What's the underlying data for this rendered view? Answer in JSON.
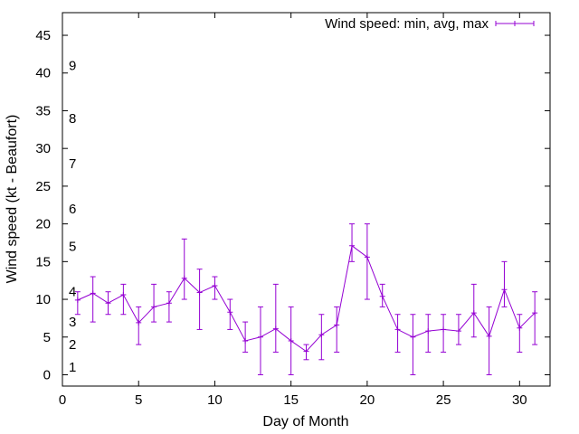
{
  "chart_data": {
    "type": "line",
    "xlabel": "Day of Month",
    "ylabel": "Wind speed (kt - Beaufort)",
    "xlim": [
      0,
      32
    ],
    "ylim": [
      -1.5,
      48
    ],
    "xticks": [
      0,
      5,
      10,
      15,
      20,
      25,
      30
    ],
    "yticks": [
      0,
      5,
      10,
      15,
      20,
      25,
      30,
      35,
      40,
      45
    ],
    "grid": false,
    "legend_position": "top-right",
    "series_color": "#9400d3",
    "series": [
      {
        "name": "Wind speed: min, avg, max",
        "x": [
          1,
          2,
          3,
          4,
          5,
          6,
          7,
          8,
          9,
          10,
          11,
          12,
          13,
          14,
          15,
          16,
          17,
          18,
          19,
          20,
          21,
          22,
          23,
          24,
          25,
          26,
          27,
          28,
          29,
          30,
          31
        ],
        "avg": [
          9.9,
          10.8,
          9.5,
          10.6,
          6.9,
          9.0,
          9.5,
          12.8,
          10.9,
          11.8,
          8.3,
          4.5,
          5.0,
          6.1,
          4.5,
          3.1,
          5.3,
          6.6,
          17.1,
          15.6,
          10.4,
          6.0,
          5.0,
          5.8,
          6.0,
          5.8,
          8.2,
          5.1,
          11.3,
          6.2,
          8.2
        ],
        "min": [
          8,
          7,
          8,
          8,
          4,
          7,
          7,
          10,
          6,
          10,
          6,
          3,
          0,
          3,
          0,
          2,
          2,
          3,
          15,
          10,
          9,
          3,
          0,
          3,
          3,
          4,
          5,
          0,
          9,
          3,
          4
        ],
        "max": [
          11,
          13,
          11,
          12,
          9,
          12,
          11,
          18,
          14,
          13,
          10,
          7,
          9,
          12,
          9,
          4,
          8,
          9,
          20,
          20,
          12,
          8,
          8,
          8,
          8,
          8,
          12,
          9,
          15,
          8,
          11
        ]
      }
    ],
    "annotations": [
      {
        "text": "1",
        "y": 1
      },
      {
        "text": "2",
        "y": 4
      },
      {
        "text": "3",
        "y": 7
      },
      {
        "text": "4",
        "y": 11
      },
      {
        "text": "5",
        "y": 17
      },
      {
        "text": "6",
        "y": 22
      },
      {
        "text": "7",
        "y": 28
      },
      {
        "text": "8",
        "y": 34
      },
      {
        "text": "9",
        "y": 41
      }
    ]
  }
}
